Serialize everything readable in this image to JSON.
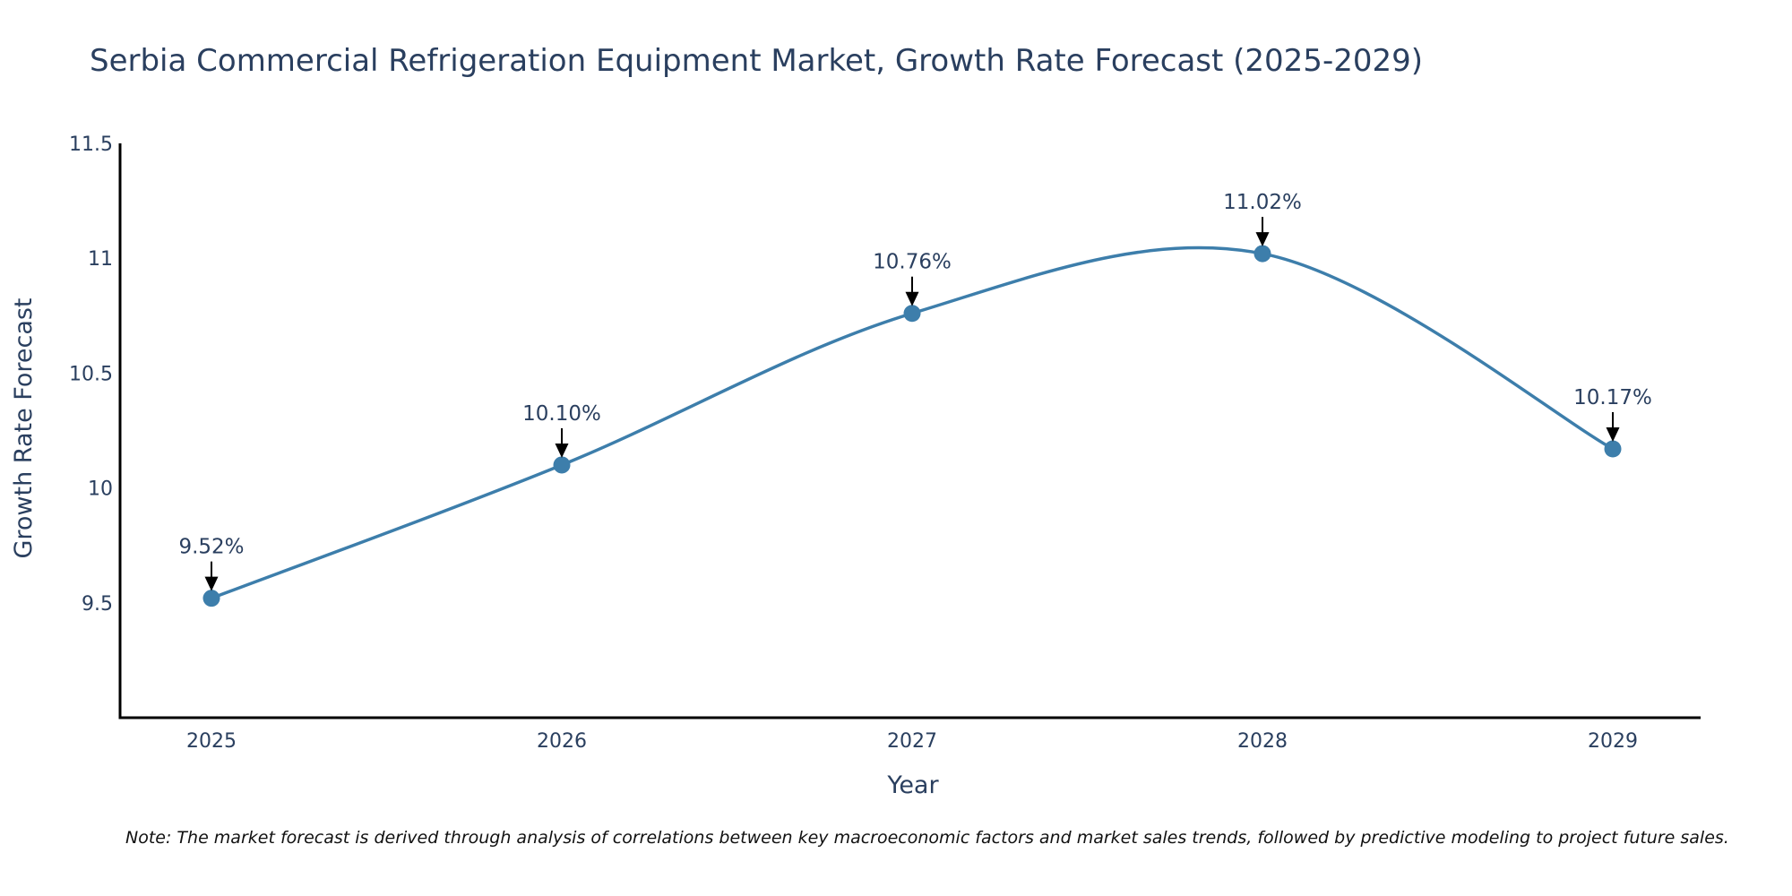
{
  "chart_data": {
    "type": "line",
    "title": "Serbia Commercial Refrigeration Equipment Market, Growth Rate Forecast (2025-2029)",
    "xlabel": "Year",
    "ylabel": "Growth Rate Forecast",
    "categories": [
      "2025",
      "2026",
      "2027",
      "2028",
      "2029"
    ],
    "series": [
      {
        "name": "Growth Rate Forecast",
        "values": [
          9.52,
          10.1,
          10.76,
          11.02,
          10.17
        ],
        "color": "#3d7eab"
      }
    ],
    "data_labels": [
      "9.52%",
      "10.10%",
      "10.76%",
      "11.02%",
      "10.17%"
    ],
    "ylim": [
      9.0,
      11.5
    ],
    "yticks": [
      9.5,
      10,
      10.5,
      11,
      11.5
    ],
    "ytick_labels": [
      "9.5",
      "10",
      "10.5",
      "11",
      "11.5"
    ],
    "grid": false,
    "line_shape": "spline"
  },
  "note": "Note: The market forecast is derived through analysis of correlations between key macroeconomic factors and market sales trends, followed by predictive modeling to project future sales."
}
